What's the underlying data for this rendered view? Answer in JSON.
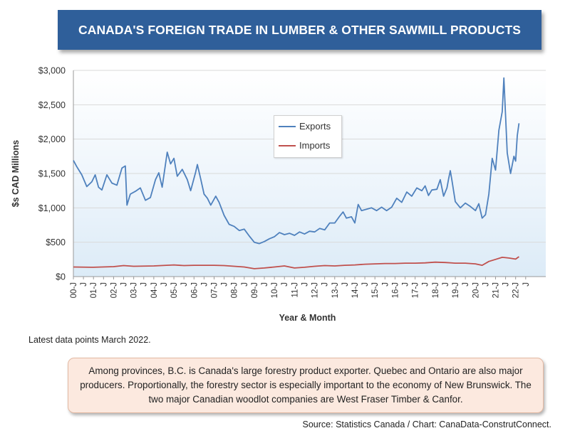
{
  "chart_data": {
    "type": "line",
    "title": "CANADA'S FOREIGN TRADE IN LUMBER & OTHER SAWMILL PRODUCTS",
    "xlabel": "Year & Month",
    "ylabel": "$s CAD Millions",
    "ylim": [
      0,
      3000
    ],
    "x_range": [
      "2000-01",
      "2022-03"
    ],
    "y_ticks": [
      "$0",
      "$500",
      "$1,000",
      "$1,500",
      "$2,000",
      "$2,500",
      "$3,000"
    ],
    "x_ticks": [
      "00-J",
      "J",
      "01-J",
      "J",
      "02-J",
      "J",
      "03-J",
      "J",
      "04-J",
      "J",
      "05-J",
      "J",
      "06-J",
      "J",
      "07-J",
      "J",
      "08-J",
      "J",
      "09-J",
      "J",
      "10-J",
      "J",
      "11-J",
      "J",
      "12-J",
      "J",
      "13-J",
      "J",
      "14-J",
      "J",
      "15-J",
      "J",
      "16-J",
      "J",
      "17-J",
      "J",
      "18-J",
      "J",
      "19-J",
      "J",
      "20-J",
      "J",
      "21-J",
      "J",
      "22-J",
      "J"
    ],
    "grid": "horizontal",
    "legend_position": "center-upper",
    "series": [
      {
        "name": "Exports",
        "color": "#4f81bd",
        "points": [
          [
            "2000-01",
            1690
          ],
          [
            "2000-03",
            1600
          ],
          [
            "2000-06",
            1480
          ],
          [
            "2000-09",
            1310
          ],
          [
            "2000-12",
            1380
          ],
          [
            "2001-02",
            1480
          ],
          [
            "2001-04",
            1300
          ],
          [
            "2001-06",
            1260
          ],
          [
            "2001-09",
            1480
          ],
          [
            "2001-12",
            1360
          ],
          [
            "2002-03",
            1330
          ],
          [
            "2002-06",
            1580
          ],
          [
            "2002-08",
            1610
          ],
          [
            "2002-09",
            1040
          ],
          [
            "2002-11",
            1200
          ],
          [
            "2003-02",
            1240
          ],
          [
            "2003-05",
            1290
          ],
          [
            "2003-08",
            1110
          ],
          [
            "2003-11",
            1150
          ],
          [
            "2004-02",
            1410
          ],
          [
            "2004-04",
            1510
          ],
          [
            "2004-06",
            1300
          ],
          [
            "2004-09",
            1810
          ],
          [
            "2004-11",
            1640
          ],
          [
            "2005-01",
            1720
          ],
          [
            "2005-03",
            1460
          ],
          [
            "2005-06",
            1560
          ],
          [
            "2005-09",
            1410
          ],
          [
            "2005-11",
            1250
          ],
          [
            "2006-02",
            1520
          ],
          [
            "2006-03",
            1630
          ],
          [
            "2006-05",
            1420
          ],
          [
            "2006-07",
            1200
          ],
          [
            "2006-09",
            1140
          ],
          [
            "2006-11",
            1040
          ],
          [
            "2007-02",
            1170
          ],
          [
            "2007-04",
            1080
          ],
          [
            "2007-07",
            890
          ],
          [
            "2007-10",
            760
          ],
          [
            "2008-01",
            730
          ],
          [
            "2008-04",
            670
          ],
          [
            "2008-07",
            690
          ],
          [
            "2008-10",
            590
          ],
          [
            "2009-01",
            500
          ],
          [
            "2009-04",
            480
          ],
          [
            "2009-07",
            510
          ],
          [
            "2009-10",
            550
          ],
          [
            "2010-01",
            580
          ],
          [
            "2010-04",
            640
          ],
          [
            "2010-07",
            610
          ],
          [
            "2010-10",
            630
          ],
          [
            "2011-01",
            600
          ],
          [
            "2011-04",
            650
          ],
          [
            "2011-07",
            620
          ],
          [
            "2011-10",
            660
          ],
          [
            "2012-01",
            650
          ],
          [
            "2012-04",
            700
          ],
          [
            "2012-07",
            680
          ],
          [
            "2012-10",
            780
          ],
          [
            "2013-01",
            780
          ],
          [
            "2013-04",
            880
          ],
          [
            "2013-06",
            940
          ],
          [
            "2013-08",
            850
          ],
          [
            "2013-11",
            870
          ],
          [
            "2014-01",
            780
          ],
          [
            "2014-03",
            1050
          ],
          [
            "2014-05",
            960
          ],
          [
            "2014-08",
            980
          ],
          [
            "2014-11",
            1000
          ],
          [
            "2015-02",
            960
          ],
          [
            "2015-05",
            1010
          ],
          [
            "2015-08",
            960
          ],
          [
            "2015-11",
            1010
          ],
          [
            "2016-02",
            1140
          ],
          [
            "2016-05",
            1080
          ],
          [
            "2016-08",
            1230
          ],
          [
            "2016-11",
            1170
          ],
          [
            "2017-02",
            1290
          ],
          [
            "2017-05",
            1250
          ],
          [
            "2017-07",
            1320
          ],
          [
            "2017-09",
            1180
          ],
          [
            "2017-11",
            1260
          ],
          [
            "2018-02",
            1270
          ],
          [
            "2018-04",
            1410
          ],
          [
            "2018-06",
            1170
          ],
          [
            "2018-08",
            1290
          ],
          [
            "2018-09",
            1420
          ],
          [
            "2018-10",
            1540
          ],
          [
            "2018-11",
            1400
          ],
          [
            "2019-01",
            1090
          ],
          [
            "2019-04",
            1000
          ],
          [
            "2019-07",
            1070
          ],
          [
            "2019-10",
            1020
          ],
          [
            "2020-01",
            960
          ],
          [
            "2020-03",
            1060
          ],
          [
            "2020-05",
            850
          ],
          [
            "2020-07",
            900
          ],
          [
            "2020-09",
            1200
          ],
          [
            "2020-11",
            1720
          ],
          [
            "2021-01",
            1550
          ],
          [
            "2021-03",
            2130
          ],
          [
            "2021-05",
            2400
          ],
          [
            "2021-06",
            2890
          ],
          [
            "2021-08",
            1800
          ],
          [
            "2021-10",
            1500
          ],
          [
            "2021-12",
            1750
          ],
          [
            "2022-01",
            1680
          ],
          [
            "2022-02",
            2050
          ],
          [
            "2022-03",
            2230
          ]
        ]
      },
      {
        "name": "Imports",
        "color": "#c0504d",
        "points": [
          [
            "2000-01",
            140
          ],
          [
            "2001-01",
            135
          ],
          [
            "2002-01",
            145
          ],
          [
            "2002-07",
            160
          ],
          [
            "2003-01",
            150
          ],
          [
            "2004-01",
            155
          ],
          [
            "2005-01",
            170
          ],
          [
            "2005-07",
            160
          ],
          [
            "2006-01",
            165
          ],
          [
            "2007-01",
            165
          ],
          [
            "2007-07",
            160
          ],
          [
            "2008-01",
            150
          ],
          [
            "2008-07",
            140
          ],
          [
            "2009-01",
            115
          ],
          [
            "2009-07",
            125
          ],
          [
            "2010-01",
            140
          ],
          [
            "2010-07",
            155
          ],
          [
            "2011-01",
            125
          ],
          [
            "2011-07",
            135
          ],
          [
            "2012-01",
            150
          ],
          [
            "2012-07",
            160
          ],
          [
            "2013-01",
            155
          ],
          [
            "2013-07",
            165
          ],
          [
            "2014-01",
            170
          ],
          [
            "2014-07",
            180
          ],
          [
            "2015-01",
            185
          ],
          [
            "2015-07",
            190
          ],
          [
            "2016-01",
            190
          ],
          [
            "2016-07",
            195
          ],
          [
            "2017-01",
            195
          ],
          [
            "2017-07",
            200
          ],
          [
            "2018-01",
            210
          ],
          [
            "2018-07",
            205
          ],
          [
            "2019-01",
            195
          ],
          [
            "2019-07",
            195
          ],
          [
            "2020-01",
            185
          ],
          [
            "2020-05",
            165
          ],
          [
            "2020-09",
            220
          ],
          [
            "2021-01",
            250
          ],
          [
            "2021-05",
            280
          ],
          [
            "2021-09",
            270
          ],
          [
            "2022-01",
            255
          ],
          [
            "2022-03",
            290
          ]
        ]
      }
    ]
  },
  "footnote": "Latest data points March 2022.",
  "callout": "Among provinces, B.C. is Canada's large forestry product exporter. Quebec and Ontario are also major producers. Proportionally, the forestry sector is especially important to the economy of New Brunswick. The two major Canadian woodlot companies are West Fraser Timber & Canfor.",
  "source": "Source: Statistics Canada / Chart: CanaData-ConstrutConnect."
}
